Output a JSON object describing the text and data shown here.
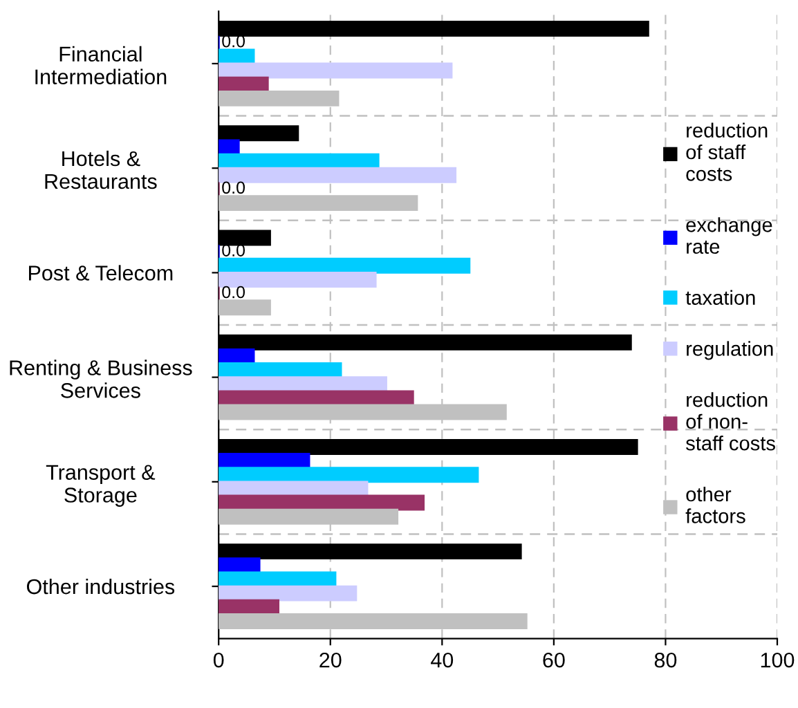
{
  "chart_data": {
    "type": "bar",
    "orientation": "horizontal",
    "categories": [
      "Financial\nIntermediation",
      "Hotels &\nRestaurants",
      "Post & Telecom",
      "Renting & Business\nServices",
      "Transport &\nStorage",
      "Other industries"
    ],
    "series": [
      {
        "name": "reduction\nof staff\ncosts",
        "color": "#000000",
        "values": [
          76.9,
          14.2,
          9.2,
          73.8,
          74.9,
          54.1
        ]
      },
      {
        "name": "exchange\nrate",
        "color": "#0000ff",
        "values": [
          0,
          3.6,
          0,
          6.3,
          16.2,
          7.3
        ],
        "value_labels": [
          "0.0",
          null,
          "0.0",
          null,
          null,
          null
        ]
      },
      {
        "name": "taxation",
        "color": "#00ccff",
        "values": [
          6.3,
          28.6,
          44.9,
          21.9,
          46.4,
          20.9
        ]
      },
      {
        "name": "regulation",
        "color": "#ccccff",
        "values": [
          41.7,
          42.4,
          28.1,
          30.0,
          26.6,
          24.6
        ]
      },
      {
        "name": "reduction\nof non-\nstaff costs",
        "color": "#993366",
        "values": [
          8.8,
          0,
          0,
          34.8,
          36.7,
          10.7
        ],
        "value_labels": [
          null,
          "0.0",
          "0.0",
          null,
          null,
          null
        ]
      },
      {
        "name": "other\nfactors",
        "color": "#c0c0c0",
        "values": [
          21.4,
          35.5,
          9.2,
          51.4,
          32.0,
          55.1
        ]
      }
    ],
    "xlim": [
      0,
      100
    ],
    "xticks": [
      0,
      20,
      40,
      60,
      80,
      100
    ],
    "grid": true,
    "legend": "right"
  }
}
